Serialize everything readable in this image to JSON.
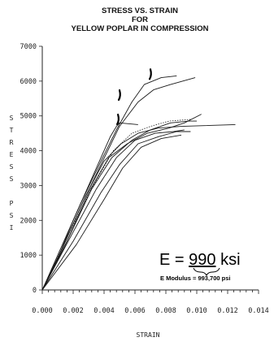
{
  "chart_data": {
    "type": "line",
    "title": [
      "STRESS VS. STRAIN",
      "FOR",
      "YELLOW POPLAR IN COMPRESSION"
    ],
    "xlabel": "STRAIN",
    "ylabel": "STRESS PSI",
    "xlim": [
      0.0,
      0.014
    ],
    "ylim": [
      0,
      7000
    ],
    "xticks": [
      "0.000",
      "0.002",
      "0.004",
      "0.006",
      "0.008",
      "0.010",
      "0.012",
      "0.014"
    ],
    "yticks": [
      "0",
      "1000",
      "2000",
      "3000",
      "4000",
      "5000",
      "6000",
      "7000"
    ],
    "grid": false,
    "annotations": {
      "modulus_big_prefix": "E = ",
      "modulus_big_value": "990",
      "modulus_big_suffix": " ksi",
      "modulus_small": "E Modulus = 993,700 psi"
    },
    "series": [
      {
        "values": [
          [
            0,
            0
          ],
          [
            0.0012,
            1200
          ],
          [
            0.0025,
            2500
          ],
          [
            0.0038,
            3700
          ],
          [
            0.0048,
            4600
          ],
          [
            0.0058,
            5400
          ],
          [
            0.0066,
            5900
          ],
          [
            0.0077,
            6100
          ],
          [
            0.0087,
            6150
          ]
        ]
      },
      {
        "values": [
          [
            0,
            0
          ],
          [
            0.0013,
            1200
          ],
          [
            0.0026,
            2500
          ],
          [
            0.0038,
            3600
          ],
          [
            0.005,
            4700
          ],
          [
            0.0062,
            5400
          ],
          [
            0.0072,
            5750
          ],
          [
            0.0083,
            5900
          ],
          [
            0.0099,
            6100
          ]
        ]
      },
      {
        "values": [
          [
            0,
            0
          ],
          [
            0.001,
            900
          ],
          [
            0.002,
            2000
          ],
          [
            0.003,
            3000
          ],
          [
            0.0038,
            3800
          ],
          [
            0.0044,
            4400
          ],
          [
            0.0048,
            4700
          ],
          [
            0.005,
            4800
          ],
          [
            0.0062,
            4750
          ]
        ]
      },
      {
        "values": [
          [
            0,
            0
          ],
          [
            0.0014,
            1300
          ],
          [
            0.0028,
            2700
          ],
          [
            0.004,
            3700
          ],
          [
            0.0051,
            4200
          ],
          [
            0.0062,
            4500
          ],
          [
            0.0075,
            4650
          ],
          [
            0.009,
            4700
          ],
          [
            0.0125,
            4750
          ]
        ]
      },
      {
        "values": [
          [
            0,
            0
          ],
          [
            0.0015,
            1300
          ],
          [
            0.003,
            2800
          ],
          [
            0.0043,
            3800
          ],
          [
            0.0055,
            4200
          ],
          [
            0.0068,
            4500
          ],
          [
            0.0082,
            4650
          ],
          [
            0.0092,
            4800
          ],
          [
            0.0103,
            5050
          ]
        ]
      },
      {
        "values": [
          [
            0,
            0
          ],
          [
            0.0016,
            1400
          ],
          [
            0.0032,
            2900
          ],
          [
            0.0045,
            3800
          ],
          [
            0.0058,
            4300
          ],
          [
            0.007,
            4600
          ],
          [
            0.0083,
            4800
          ],
          [
            0.0095,
            4850
          ],
          [
            0.01,
            4850
          ]
        ]
      },
      {
        "values": [
          [
            0,
            0
          ],
          [
            0.0018,
            1500
          ],
          [
            0.0035,
            2900
          ],
          [
            0.0048,
            3800
          ],
          [
            0.006,
            4300
          ],
          [
            0.0073,
            4500
          ],
          [
            0.0085,
            4550
          ],
          [
            0.0092,
            4600
          ]
        ]
      },
      {
        "values": [
          [
            0,
            0
          ],
          [
            0.002,
            1400
          ],
          [
            0.0038,
            2800
          ],
          [
            0.005,
            3600
          ],
          [
            0.0062,
            4200
          ],
          [
            0.0075,
            4400
          ],
          [
            0.0087,
            4550
          ],
          [
            0.0096,
            4550
          ]
        ]
      },
      {
        "values": [
          [
            0,
            0
          ],
          [
            0.0022,
            1300
          ],
          [
            0.004,
            2600
          ],
          [
            0.0052,
            3500
          ],
          [
            0.0064,
            4100
          ],
          [
            0.0077,
            4350
          ],
          [
            0.009,
            4450
          ]
        ]
      },
      {
        "values": [
          [
            0,
            0
          ],
          [
            0.0017,
            1600
          ],
          [
            0.0033,
            3000
          ],
          [
            0.0046,
            4000
          ],
          [
            0.0058,
            4500
          ],
          [
            0.007,
            4700
          ],
          [
            0.0082,
            4850
          ],
          [
            0.0096,
            4900
          ]
        ],
        "dotted": true
      }
    ]
  }
}
